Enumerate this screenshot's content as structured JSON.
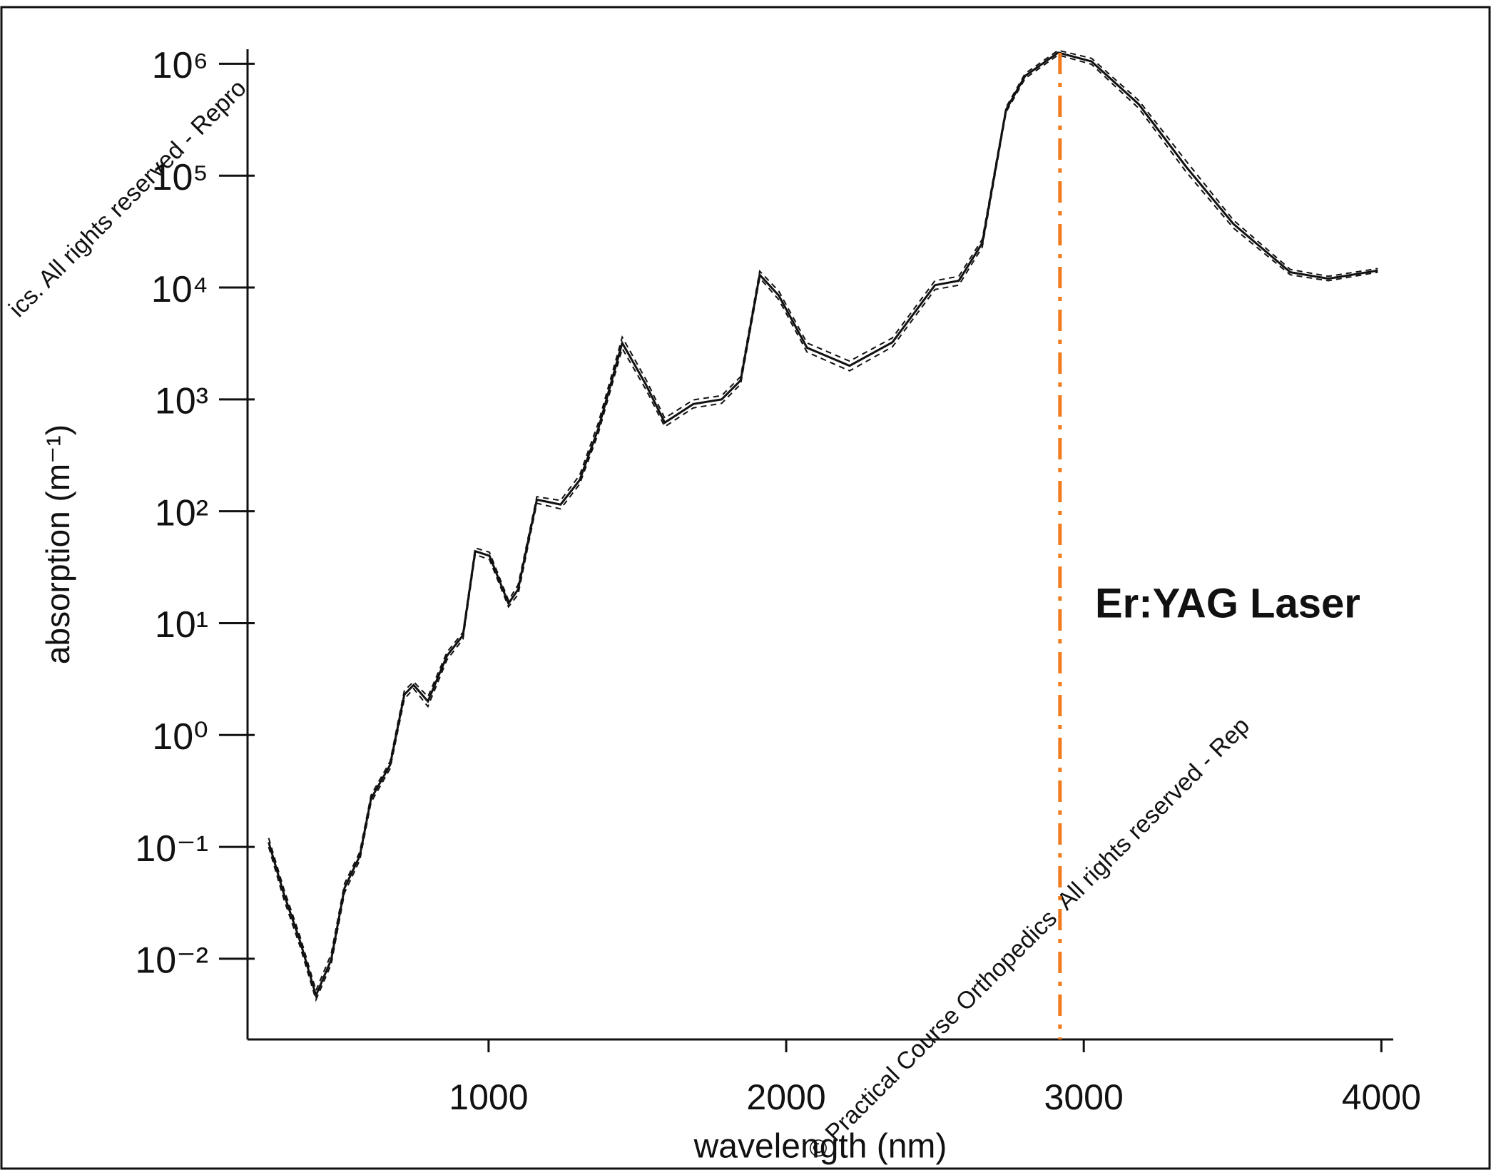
{
  "chart_data": {
    "type": "line",
    "x_label": "wavelength (nm)",
    "y_label": "absorption (m⁻¹)",
    "log_y": true,
    "xlim": [
      190,
      4040
    ],
    "xticks": [
      1000,
      2000,
      3000,
      4000
    ],
    "ylim": [
      0.0019,
      1350000
    ],
    "yticks": [
      {
        "value": 0.01,
        "label": "10⁻²"
      },
      {
        "value": 0.1,
        "label": "10⁻¹"
      },
      {
        "value": 1,
        "label": "10⁰"
      },
      {
        "value": 10,
        "label": "10¹"
      },
      {
        "value": 100,
        "label": "10²"
      },
      {
        "value": 1000,
        "label": "10³"
      },
      {
        "value": 10000,
        "label": "10⁴"
      },
      {
        "value": 100000,
        "label": "10⁵"
      },
      {
        "value": 1000000,
        "label": "10⁶"
      }
    ],
    "x": [
      261,
      312,
      366,
      420,
      471,
      516,
      567,
      605,
      669,
      717,
      748,
      796,
      860,
      914,
      955,
      1003,
      1067,
      1099,
      1162,
      1242,
      1306,
      1369,
      1449,
      1529,
      1592,
      1688,
      1783,
      1847,
      1911,
      1975,
      2070,
      2213,
      2357,
      2500,
      2580,
      2659,
      2739,
      2803,
      2914,
      3026,
      3185,
      3344,
      3503,
      3694,
      3822,
      3988
    ],
    "series": [
      {
        "color": "#111111",
        "dash": false,
        "values": [
          0.11,
          0.038,
          0.0145,
          0.0047,
          0.0098,
          0.043,
          0.083,
          0.27,
          0.54,
          2.3,
          2.8,
          2.0,
          5.1,
          7.8,
          44,
          40,
          15,
          20,
          127,
          115,
          190,
          550,
          3200,
          1350,
          620,
          910,
          1000,
          1480,
          13000,
          8500,
          2900,
          2000,
          3240,
          10500,
          11500,
          25000,
          390000,
          780000,
          1260000,
          1050000,
          435000,
          120000,
          37000,
          13700,
          12000,
          14200
        ]
      },
      {
        "color": "#111111",
        "dash": true,
        "values": [
          0.12,
          0.042,
          0.016,
          0.0052,
          0.011,
          0.047,
          0.09,
          0.29,
          0.58,
          2.5,
          3.0,
          2.2,
          5.5,
          8.3,
          47,
          43,
          16,
          22,
          135,
          125,
          210,
          620,
          3600,
          1500,
          680,
          990,
          1080,
          1600,
          14000,
          9300,
          3200,
          2200,
          3550,
          11500,
          12600,
          27000,
          410000,
          820000,
          1320000,
          1120000,
          470000,
          135000,
          40000,
          14500,
          12600,
          14800
        ]
      },
      {
        "color": "#111111",
        "dash": true,
        "values": [
          0.1,
          0.034,
          0.013,
          0.0043,
          0.0089,
          0.039,
          0.076,
          0.25,
          0.5,
          2.1,
          2.6,
          1.8,
          4.7,
          7.2,
          41,
          37,
          14,
          18,
          118,
          105,
          175,
          500,
          2850,
          1220,
          570,
          840,
          920,
          1370,
          12200,
          7800,
          2650,
          1800,
          2950,
          9600,
          10500,
          23000,
          370000,
          740000,
          1200000,
          990000,
          400000,
          108000,
          34000,
          13000,
          11500,
          13700
        ]
      }
    ],
    "vline": {
      "x": 2920,
      "color": "#f07c1e"
    },
    "annotation": "Er:YAG Laser",
    "watermarks": [
      "ics. All rights reserved - Repro",
      "© Practical Course Orthopedics. All rights reserved - Rep"
    ]
  }
}
